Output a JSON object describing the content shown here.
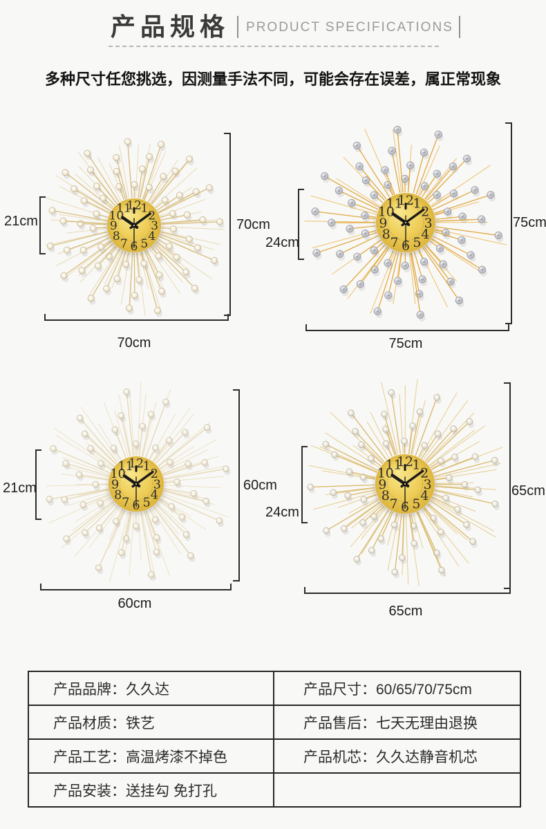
{
  "header": {
    "title_cn": "产品规格",
    "title_en": "PRODUCT SPECIFICATIONS",
    "subtitle": "多种尺寸任您挑选，因测量手法不同，可能会存在误差，属正常现象"
  },
  "clock_face": {
    "numbers": [
      "12",
      "1",
      "2",
      "3",
      "4",
      "5",
      "6",
      "7",
      "8",
      "9",
      "10",
      "11"
    ],
    "colors": {
      "light": "#f9e88f",
      "mid": "#efd05c",
      "dark": "#ddb53c"
    },
    "time": "10:09"
  },
  "figures": [
    {
      "id": "tl",
      "size_name": "70cm",
      "face_label": "21cm",
      "height_label": "70cm",
      "width_label": "70cm",
      "style": {
        "type": "pearl",
        "spoke": "#d8bd7e",
        "needle": "#e7d7ae",
        "bead_light": "#ffffff",
        "bead_mid": "#f7f0e0",
        "bead_dark": "#cfc2a2",
        "bead_edge": "#bfb292"
      },
      "rays": 60,
      "rings": [
        0.44,
        0.6,
        0.76,
        0.93
      ],
      "needles": 48,
      "needle_range": [
        0.7,
        1.04
      ],
      "bead_r": 4.8,
      "seed": 11
    },
    {
      "id": "tr",
      "size_name": "75cm",
      "face_label": "24cm",
      "height_label": "75cm",
      "width_label": "75cm",
      "style": {
        "type": "crystal",
        "spoke": "#e2a83f",
        "needle": "#edba59",
        "bead_light": "#fbfbfc",
        "bead_mid": "#d8d9dd",
        "bead_dark": "#a2a4ac",
        "bead_edge": "#8f929b"
      },
      "rays": 56,
      "rings": [
        0.42,
        0.57,
        0.73,
        0.9
      ],
      "needles": 22,
      "needle_range": [
        0.75,
        1.02
      ],
      "bead_r": 5.4,
      "seed": 23
    },
    {
      "id": "bl",
      "size_name": "60cm",
      "face_label": "21cm",
      "height_label": "60cm",
      "width_label": "60cm",
      "style": {
        "type": "pearl",
        "spoke": "#e4d7b2",
        "needle": "#ecdfc0",
        "bead_light": "#ffffff",
        "bead_mid": "#f4efe3",
        "bead_dark": "#d4c9ae",
        "bead_edge": "#c2b694"
      },
      "rays": 48,
      "rings": [
        0.42,
        0.58,
        0.74,
        0.92
      ],
      "needles": 56,
      "needle_range": [
        0.6,
        1.05
      ],
      "bead_r": 4.6,
      "seed": 37
    },
    {
      "id": "br",
      "size_name": "65cm",
      "face_label": "24cm",
      "height_label": "65cm",
      "width_label": "65cm",
      "style": {
        "type": "pearl",
        "spoke": "#d9b869",
        "needle": "#e4c987",
        "bead_light": "#ffffff",
        "bead_mid": "#f0ece2",
        "bead_dark": "#c9c2b0",
        "bead_edge": "#b3ab98"
      },
      "rays": 52,
      "rings": [
        0.43,
        0.58,
        0.74,
        0.91
      ],
      "needles": 54,
      "needle_range": [
        0.62,
        1.06
      ],
      "bead_r": 4.6,
      "seed": 53
    }
  ],
  "table": {
    "rows": [
      {
        "left": "产品品牌：久久达",
        "right": "产品尺寸：60/65/70/75cm"
      },
      {
        "left": "产品材质：铁艺",
        "right": "产品售后：七天无理由退换"
      },
      {
        "left": "产品工艺：高温烤漆不掉色",
        "right": "产品机芯：久久达静音机芯"
      },
      {
        "left": "产品安装：送挂勾 免打孔",
        "right": ""
      }
    ]
  }
}
